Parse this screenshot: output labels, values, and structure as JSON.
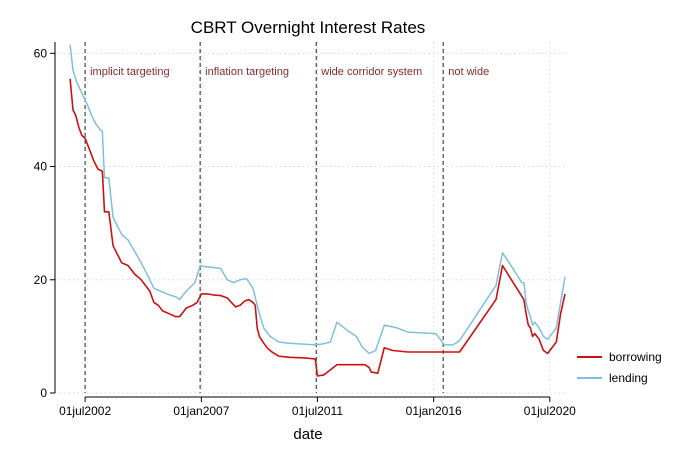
{
  "chart_data": {
    "type": "line",
    "title": "CBRT Overnight Interest Rates",
    "xlabel": "date",
    "ylabel": "",
    "x_type": "date",
    "xlim": [
      "2001-05-01",
      "2021-02-01"
    ],
    "ylim": [
      0,
      62
    ],
    "yticks": [
      0,
      20,
      40,
      60
    ],
    "xticks": [
      {
        "date": "2002-07-01",
        "label": "01jul2002"
      },
      {
        "date": "2007-01-01",
        "label": "01jan2007"
      },
      {
        "date": "2011-07-01",
        "label": "01jul2011"
      },
      {
        "date": "2016-01-01",
        "label": "01jan2016"
      },
      {
        "date": "2020-07-01",
        "label": "01jul2020"
      }
    ],
    "grid": true,
    "legend_position": "bottom-right",
    "colors": {
      "borrowing": "#cc1111",
      "lending": "#7fbfe0",
      "annotation": "#8b2a2a",
      "vline": "#555555",
      "grid": "#d9d9d9"
    },
    "vlines": [
      {
        "date": "2002-07-01",
        "label": "implicit targeting"
      },
      {
        "date": "2006-12-15",
        "label": "inflation targeting"
      },
      {
        "date": "2011-06-15",
        "label": "wide corridor system"
      },
      {
        "date": "2016-05-15",
        "label": "not wide"
      }
    ],
    "series": [
      {
        "name": "borrowing",
        "points": [
          [
            "2001-12-01",
            55.5
          ],
          [
            "2002-01-10",
            50
          ],
          [
            "2002-02-20",
            49
          ],
          [
            "2002-04-01",
            47
          ],
          [
            "2002-05-15",
            45.5
          ],
          [
            "2002-07-01",
            45
          ],
          [
            "2002-09-01",
            43
          ],
          [
            "2002-11-01",
            41
          ],
          [
            "2003-01-01",
            39.5
          ],
          [
            "2003-03-01",
            39.2
          ],
          [
            "2003-04-01",
            32
          ],
          [
            "2003-06-01",
            32
          ],
          [
            "2003-08-01",
            26
          ],
          [
            "2003-10-01",
            24.5
          ],
          [
            "2003-12-01",
            23
          ],
          [
            "2004-03-01",
            22.5
          ],
          [
            "2004-06-01",
            21
          ],
          [
            "2004-09-01",
            20
          ],
          [
            "2005-01-01",
            18
          ],
          [
            "2005-03-01",
            16
          ],
          [
            "2005-05-01",
            15.5
          ],
          [
            "2005-07-01",
            14.5
          ],
          [
            "2005-10-01",
            14
          ],
          [
            "2006-01-01",
            13.5
          ],
          [
            "2006-03-01",
            13.5
          ],
          [
            "2006-06-01",
            15
          ],
          [
            "2006-09-01",
            15.5
          ],
          [
            "2006-11-01",
            16
          ],
          [
            "2007-01-01",
            17.5
          ],
          [
            "2007-04-01",
            17.5
          ],
          [
            "2007-07-01",
            17.3
          ],
          [
            "2007-10-01",
            17.2
          ],
          [
            "2008-01-01",
            16.8
          ],
          [
            "2008-03-01",
            16
          ],
          [
            "2008-05-01",
            15.2
          ],
          [
            "2008-07-01",
            15.5
          ],
          [
            "2008-09-01",
            16.2
          ],
          [
            "2008-11-01",
            16.5
          ],
          [
            "2009-01-01",
            16
          ],
          [
            "2009-02-01",
            15.5
          ],
          [
            "2009-03-01",
            11.5
          ],
          [
            "2009-04-01",
            10
          ],
          [
            "2009-06-01",
            8.8
          ],
          [
            "2009-08-01",
            7.8
          ],
          [
            "2009-10-01",
            7.2
          ],
          [
            "2010-01-01",
            6.5
          ],
          [
            "2010-06-01",
            6.3
          ],
          [
            "2011-01-01",
            6.2
          ],
          [
            "2011-06-01",
            6
          ],
          [
            "2011-07-01",
            3
          ],
          [
            "2011-10-01",
            3.2
          ],
          [
            "2012-04-01",
            5
          ],
          [
            "2013-05-01",
            5
          ],
          [
            "2013-07-01",
            4.5
          ],
          [
            "2013-08-01",
            3.7
          ],
          [
            "2013-11-01",
            3.5
          ],
          [
            "2014-02-01",
            8
          ],
          [
            "2014-06-01",
            7.5
          ],
          [
            "2015-01-01",
            7.25
          ],
          [
            "2016-06-01",
            7.25
          ],
          [
            "2017-01-01",
            7.25
          ],
          [
            "2018-06-01",
            16.5
          ],
          [
            "2018-09-01",
            22.5
          ],
          [
            "2019-07-01",
            16.5
          ],
          [
            "2019-08-01",
            14
          ],
          [
            "2019-09-01",
            12
          ],
          [
            "2019-10-01",
            11.5
          ],
          [
            "2019-11-01",
            10
          ],
          [
            "2019-12-01",
            10.5
          ],
          [
            "2020-02-01",
            9.5
          ],
          [
            "2020-04-01",
            7.5
          ],
          [
            "2020-06-01",
            7
          ],
          [
            "2020-10-01",
            9
          ],
          [
            "2020-12-01",
            14
          ],
          [
            "2021-02-01",
            17.5
          ]
        ]
      },
      {
        "name": "lending",
        "points": [
          [
            "2001-12-01",
            61.5
          ],
          [
            "2002-01-10",
            57
          ],
          [
            "2002-03-01",
            55
          ],
          [
            "2002-06-01",
            52.5
          ],
          [
            "2002-08-01",
            51
          ],
          [
            "2002-10-01",
            49
          ],
          [
            "2002-12-01",
            47.5
          ],
          [
            "2003-02-01",
            46.5
          ],
          [
            "2003-03-01",
            46.2
          ],
          [
            "2003-04-01",
            38
          ],
          [
            "2003-06-01",
            38
          ],
          [
            "2003-08-01",
            31
          ],
          [
            "2003-10-01",
            29.5
          ],
          [
            "2003-12-01",
            28
          ],
          [
            "2004-03-01",
            27
          ],
          [
            "2004-06-01",
            25
          ],
          [
            "2004-09-01",
            23
          ],
          [
            "2005-01-01",
            20
          ],
          [
            "2005-03-01",
            18.5
          ],
          [
            "2005-06-01",
            18
          ],
          [
            "2005-09-01",
            17.5
          ],
          [
            "2006-01-01",
            17
          ],
          [
            "2006-03-01",
            16.5
          ],
          [
            "2006-06-01",
            18
          ],
          [
            "2006-10-01",
            19.5
          ],
          [
            "2006-12-15",
            22.5
          ],
          [
            "2007-03-01",
            22.3
          ],
          [
            "2007-06-01",
            22.2
          ],
          [
            "2007-10-01",
            22
          ],
          [
            "2008-01-01",
            20
          ],
          [
            "2008-04-01",
            19.5
          ],
          [
            "2008-07-01",
            20
          ],
          [
            "2008-10-01",
            20.2
          ],
          [
            "2009-01-01",
            18.5
          ],
          [
            "2009-03-01",
            15.5
          ],
          [
            "2009-04-01",
            14
          ],
          [
            "2009-06-01",
            11.5
          ],
          [
            "2009-09-01",
            10
          ],
          [
            "2010-01-01",
            9
          ],
          [
            "2010-06-01",
            8.8
          ],
          [
            "2011-06-01",
            8.5
          ],
          [
            "2011-10-01",
            8.7
          ],
          [
            "2012-01-01",
            9
          ],
          [
            "2012-04-01",
            12.5
          ],
          [
            "2012-09-01",
            11
          ],
          [
            "2013-01-01",
            10
          ],
          [
            "2013-04-01",
            8
          ],
          [
            "2013-07-01",
            7
          ],
          [
            "2013-10-01",
            7.5
          ],
          [
            "2014-02-01",
            12
          ],
          [
            "2014-08-01",
            11.5
          ],
          [
            "2015-01-01",
            10.75
          ],
          [
            "2016-02-01",
            10.5
          ],
          [
            "2016-06-01",
            8.5
          ],
          [
            "2016-10-01",
            8.5
          ],
          [
            "2017-01-01",
            9.25
          ],
          [
            "2018-06-01",
            19
          ],
          [
            "2018-09-01",
            24.75
          ],
          [
            "2019-01-01",
            22.5
          ],
          [
            "2019-06-01",
            19.5
          ],
          [
            "2019-07-01",
            19.5
          ],
          [
            "2019-08-01",
            16
          ],
          [
            "2019-09-01",
            14.5
          ],
          [
            "2019-10-01",
            13.5
          ],
          [
            "2019-11-01",
            12
          ],
          [
            "2019-12-01",
            12.5
          ],
          [
            "2020-02-01",
            11.5
          ],
          [
            "2020-04-01",
            10
          ],
          [
            "2020-06-01",
            9.5
          ],
          [
            "2020-10-01",
            11.5
          ],
          [
            "2020-12-01",
            16
          ],
          [
            "2021-02-01",
            20.5
          ]
        ]
      }
    ]
  }
}
